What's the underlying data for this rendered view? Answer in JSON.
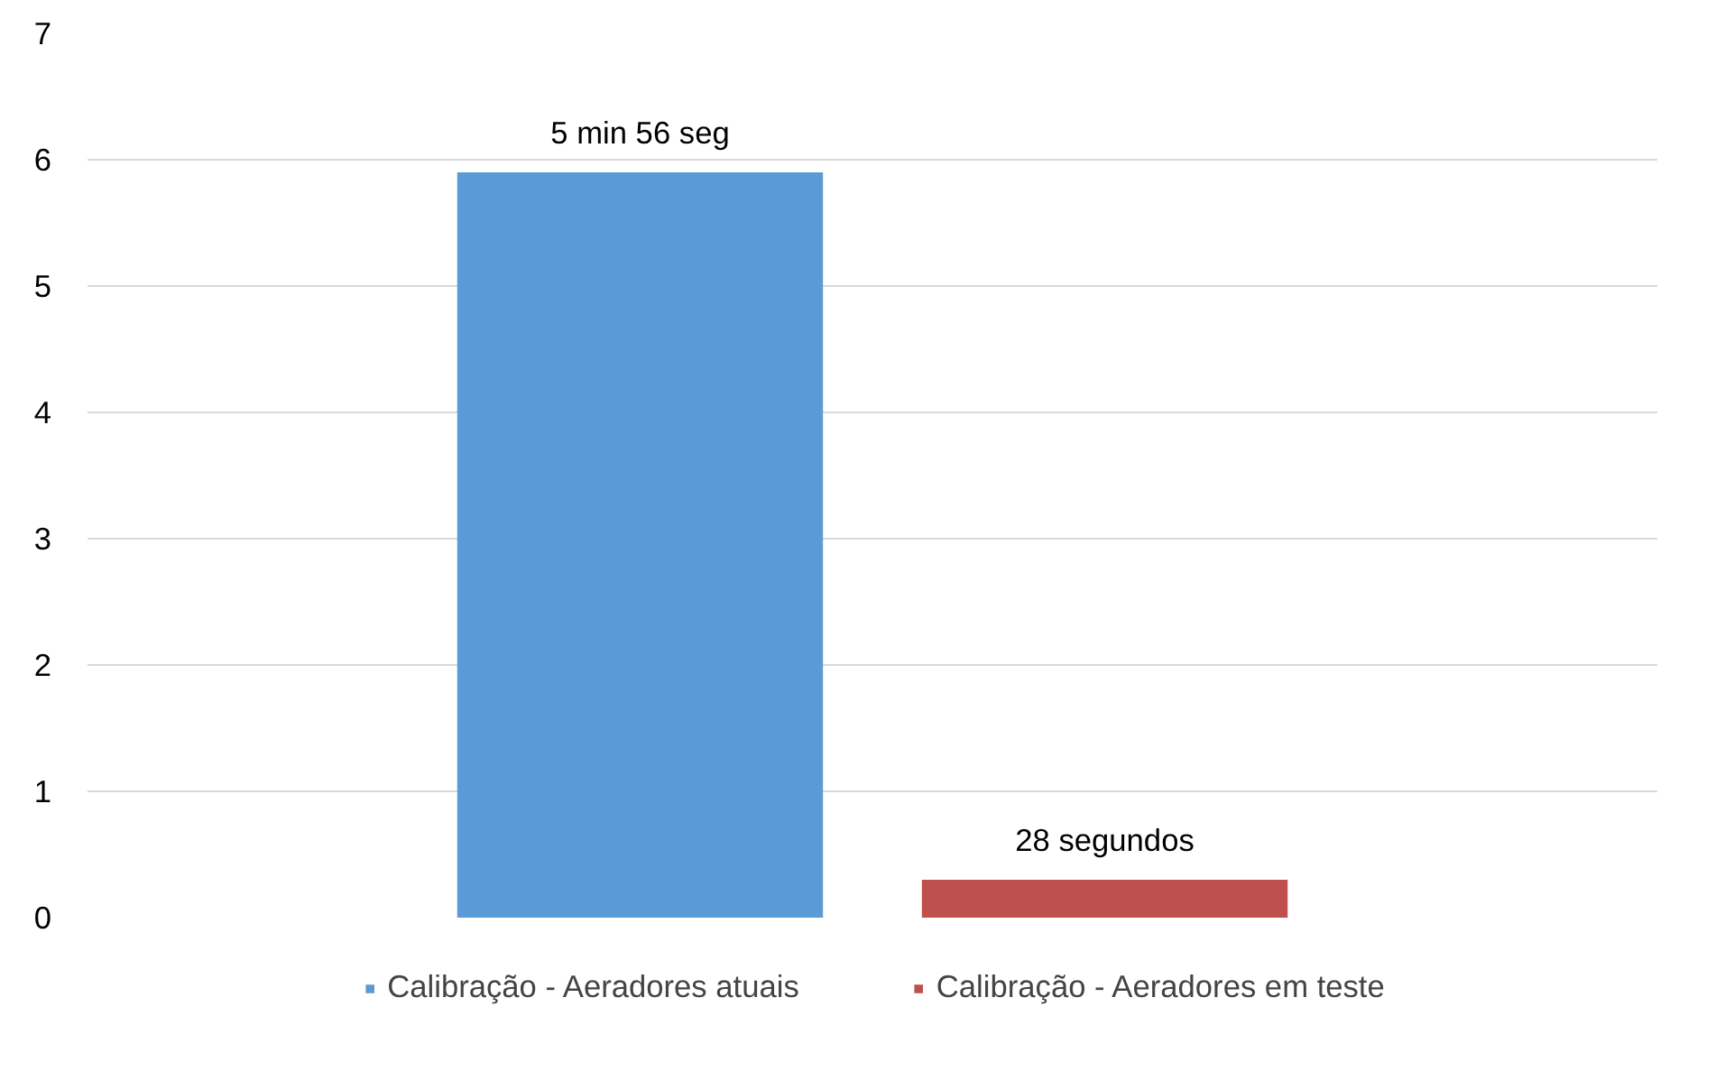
{
  "chart_data": {
    "type": "bar",
    "categories": [
      null
    ],
    "series": [
      {
        "name": "Calibração - Aeradores atuais",
        "color": "#5b9bd5",
        "values": [
          5.9
        ]
      },
      {
        "name": "Calibração - Aeradores em teste",
        "color": "#c0504d",
        "values": [
          0.3
        ]
      }
    ],
    "ylim": [
      0,
      7
    ],
    "yticks": [
      0,
      1,
      2,
      3,
      4,
      5,
      6,
      7
    ],
    "annotations": [
      {
        "text": "5 min 56 seg",
        "y": 5.9
      },
      {
        "text": "28 segundos",
        "y": 0.3
      }
    ],
    "grid": "y",
    "legend": "bottom"
  }
}
